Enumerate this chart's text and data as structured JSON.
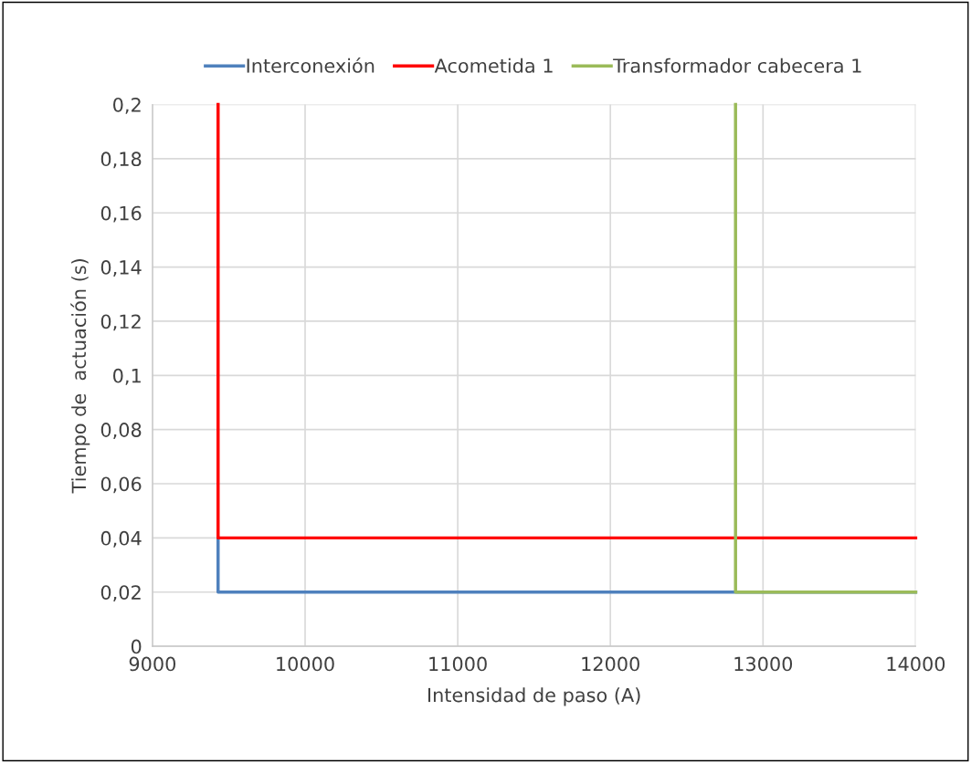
{
  "chart_data": {
    "type": "line",
    "xlabel": "Intensidad de paso (A)",
    "ylabel": "Tiempo de  actuación (s)",
    "series": [
      {
        "name": "Interconexión",
        "color": "#4f81bd",
        "x": [
          9430,
          9430,
          14000
        ],
        "values": [
          0.04,
          0.02,
          0.02
        ]
      },
      {
        "name": "Acometida 1",
        "color": "#ff0000",
        "x": [
          9430,
          9430,
          14000
        ],
        "values": [
          0.2,
          0.04,
          0.04
        ]
      },
      {
        "name": "Transformador cabecera 1",
        "color": "#9bbb59",
        "x": [
          12820,
          12820,
          14000
        ],
        "values": [
          0.2,
          0.02,
          0.02
        ]
      }
    ],
    "xlim": [
      9000,
      14000
    ],
    "xticks": [
      9000,
      10000,
      11000,
      12000,
      13000,
      14000
    ],
    "ylim": [
      0,
      0.2
    ],
    "yticks": [
      0,
      {
        "value": 0.02,
        "label": "0,02"
      },
      {
        "value": 0.04,
        "label": "0,04"
      },
      {
        "value": 0.06,
        "label": "0,06"
      },
      {
        "value": 0.08,
        "label": "0,08"
      },
      {
        "value": 0.1,
        "label": "0,1"
      },
      {
        "value": 0.12,
        "label": "0,12"
      },
      {
        "value": 0.14,
        "label": "0,14"
      },
      {
        "value": 0.16,
        "label": "0,16"
      },
      {
        "value": 0.18,
        "label": "0,18"
      },
      {
        "value": 0.2,
        "label": "0,2"
      }
    ],
    "grid": true,
    "legend": "top",
    "marker": "none",
    "line_style": "solid"
  }
}
